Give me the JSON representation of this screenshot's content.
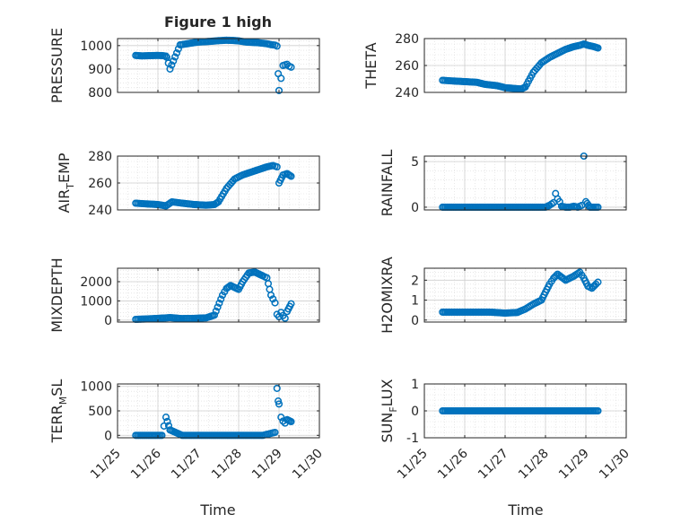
{
  "figure_title": "Figure 1 high",
  "xlabel": "Time",
  "x_ticks": [
    "11/25",
    "11/26",
    "11/27",
    "11/28",
    "11/29",
    "11/30"
  ],
  "marker_color": "#0072BD",
  "chart_data": [
    {
      "type": "scatter",
      "title": "Figure 1 high",
      "ylabel": "PRESSURE",
      "xlabel": "",
      "ylim": [
        800,
        1030
      ],
      "yticks": [
        800,
        900,
        1000
      ],
      "grid": true,
      "x_values": [
        25.45,
        25.6,
        25.8,
        26.0,
        26.12,
        26.2,
        26.22,
        26.3,
        26.55,
        26.8,
        27.0,
        27.3,
        27.5,
        27.7,
        27.85,
        28.0,
        28.2,
        28.5,
        28.7,
        28.8,
        28.9,
        28.95,
        28.98,
        29.0,
        29.05,
        29.1,
        29.2,
        29.25,
        29.3
      ],
      "y_values": [
        958,
        956,
        957,
        958,
        957,
        955,
        950,
        900,
        1003,
        1010,
        1015,
        1018,
        1021,
        1023,
        1022,
        1020,
        1015,
        1012,
        1008,
        1004,
        1002,
        998,
        880,
        808,
        860,
        915,
        920,
        912,
        908
      ]
    },
    {
      "type": "scatter",
      "title": "",
      "ylabel": "THETA",
      "xlabel": "",
      "ylim": [
        240,
        280
      ],
      "yticks": [
        240,
        260,
        280
      ],
      "grid": true,
      "x_values": [
        25.45,
        25.7,
        26.0,
        26.3,
        26.5,
        26.8,
        27.0,
        27.2,
        27.4,
        27.5,
        27.7,
        27.9,
        28.1,
        28.3,
        28.5,
        28.7,
        28.85,
        28.95,
        29.05,
        29.2,
        29.3
      ],
      "y_values": [
        249,
        248.5,
        248,
        247.5,
        246,
        245,
        243.5,
        243,
        242.5,
        244,
        255,
        262,
        266,
        269,
        272,
        274,
        275,
        276,
        275,
        274,
        273
      ]
    },
    {
      "type": "scatter",
      "title": "",
      "ylabel": "AIR_TEMP",
      "xlabel": "",
      "ylim": [
        240,
        280
      ],
      "yticks": [
        240,
        260,
        280
      ],
      "grid": true,
      "x_values": [
        25.45,
        25.7,
        26.0,
        26.2,
        26.35,
        26.6,
        26.9,
        27.2,
        27.4,
        27.5,
        27.7,
        27.9,
        28.1,
        28.3,
        28.5,
        28.7,
        28.85,
        28.95,
        29.0,
        29.1,
        29.2,
        29.3
      ],
      "y_values": [
        245,
        244.5,
        244,
        243,
        246,
        245,
        244,
        243.5,
        244,
        246,
        256,
        263,
        266,
        268,
        270,
        272,
        273,
        272,
        260,
        266,
        267,
        265
      ]
    },
    {
      "type": "scatter",
      "title": "",
      "ylabel": "RAINFALL",
      "xlabel": "",
      "ylim": [
        -0.3,
        5.6
      ],
      "yticks": [
        0,
        5
      ],
      "grid": true,
      "x_values": [
        25.45,
        25.8,
        26.2,
        26.6,
        27.0,
        27.4,
        27.8,
        28.0,
        28.1,
        28.2,
        28.25,
        28.3,
        28.35,
        28.4,
        28.5,
        28.6,
        28.7,
        28.8,
        28.9,
        28.95,
        29.0,
        29.1,
        29.3
      ],
      "y_values": [
        0,
        0,
        0,
        0,
        0,
        0,
        0,
        0,
        0.2,
        0.5,
        1.5,
        0.9,
        0.6,
        0.1,
        0,
        0,
        0.1,
        0,
        0.2,
        5.6,
        0.6,
        0,
        0
      ]
    },
    {
      "type": "scatter",
      "title": "",
      "ylabel": "MIXDEPTH",
      "xlabel": "",
      "ylim": [
        -100,
        2700
      ],
      "yticks": [
        0,
        1000,
        2000
      ],
      "grid": true,
      "x_values": [
        25.45,
        25.7,
        26.0,
        26.3,
        26.6,
        26.9,
        27.2,
        27.4,
        27.6,
        27.7,
        27.8,
        28.0,
        28.1,
        28.25,
        28.4,
        28.5,
        28.6,
        28.7,
        28.8,
        28.9,
        28.95,
        29.0,
        29.05,
        29.1,
        29.15,
        29.2,
        29.3
      ],
      "y_values": [
        40,
        60,
        90,
        130,
        80,
        90,
        120,
        260,
        1300,
        1650,
        1800,
        1600,
        2000,
        2450,
        2500,
        2400,
        2300,
        2200,
        1300,
        900,
        300,
        180,
        400,
        240,
        100,
        450,
        850
      ]
    },
    {
      "type": "scatter",
      "title": "",
      "ylabel": "H2OMIXRA",
      "xlabel": "",
      "ylim": [
        -0.1,
        2.6
      ],
      "yticks": [
        0,
        1,
        2
      ],
      "grid": true,
      "x_values": [
        25.45,
        25.8,
        26.2,
        26.6,
        27.0,
        27.3,
        27.5,
        27.7,
        27.9,
        28.0,
        28.1,
        28.2,
        28.3,
        28.5,
        28.7,
        28.85,
        28.95,
        29.05,
        29.15,
        29.25,
        29.3
      ],
      "y_values": [
        0.4,
        0.4,
        0.4,
        0.4,
        0.35,
        0.38,
        0.55,
        0.8,
        1.0,
        1.4,
        1.8,
        2.1,
        2.3,
        2.0,
        2.2,
        2.4,
        2.1,
        1.7,
        1.6,
        1.8,
        1.9
      ]
    },
    {
      "type": "scatter",
      "title": "",
      "ylabel": "TERR_MSL",
      "xlabel": "",
      "ylim": [
        -50,
        1050
      ],
      "yticks": [
        0,
        500,
        1000
      ],
      "grid": true,
      "x_values": [
        25.45,
        25.8,
        26.1,
        26.15,
        26.2,
        26.3,
        26.6,
        27.0,
        27.4,
        27.8,
        28.2,
        28.6,
        28.9,
        28.95,
        28.98,
        29.0,
        29.05,
        29.1,
        29.15,
        29.2,
        29.3
      ],
      "y_values": [
        0,
        0,
        0,
        190,
        370,
        110,
        0,
        0,
        0,
        0,
        0,
        0,
        60,
        960,
        700,
        640,
        370,
        290,
        250,
        320,
        280
      ]
    },
    {
      "type": "scatter",
      "title": "",
      "ylabel": "SUN_FLUX",
      "xlabel": "",
      "ylim": [
        -1,
        1
      ],
      "yticks": [
        -1,
        0,
        1
      ],
      "grid": true,
      "x_values": [
        25.45,
        25.8,
        26.2,
        26.6,
        27.0,
        27.4,
        27.8,
        28.2,
        28.6,
        29.0,
        29.3
      ],
      "y_values": [
        0,
        0,
        0,
        0,
        0,
        0,
        0,
        0,
        0,
        0,
        0
      ]
    }
  ]
}
